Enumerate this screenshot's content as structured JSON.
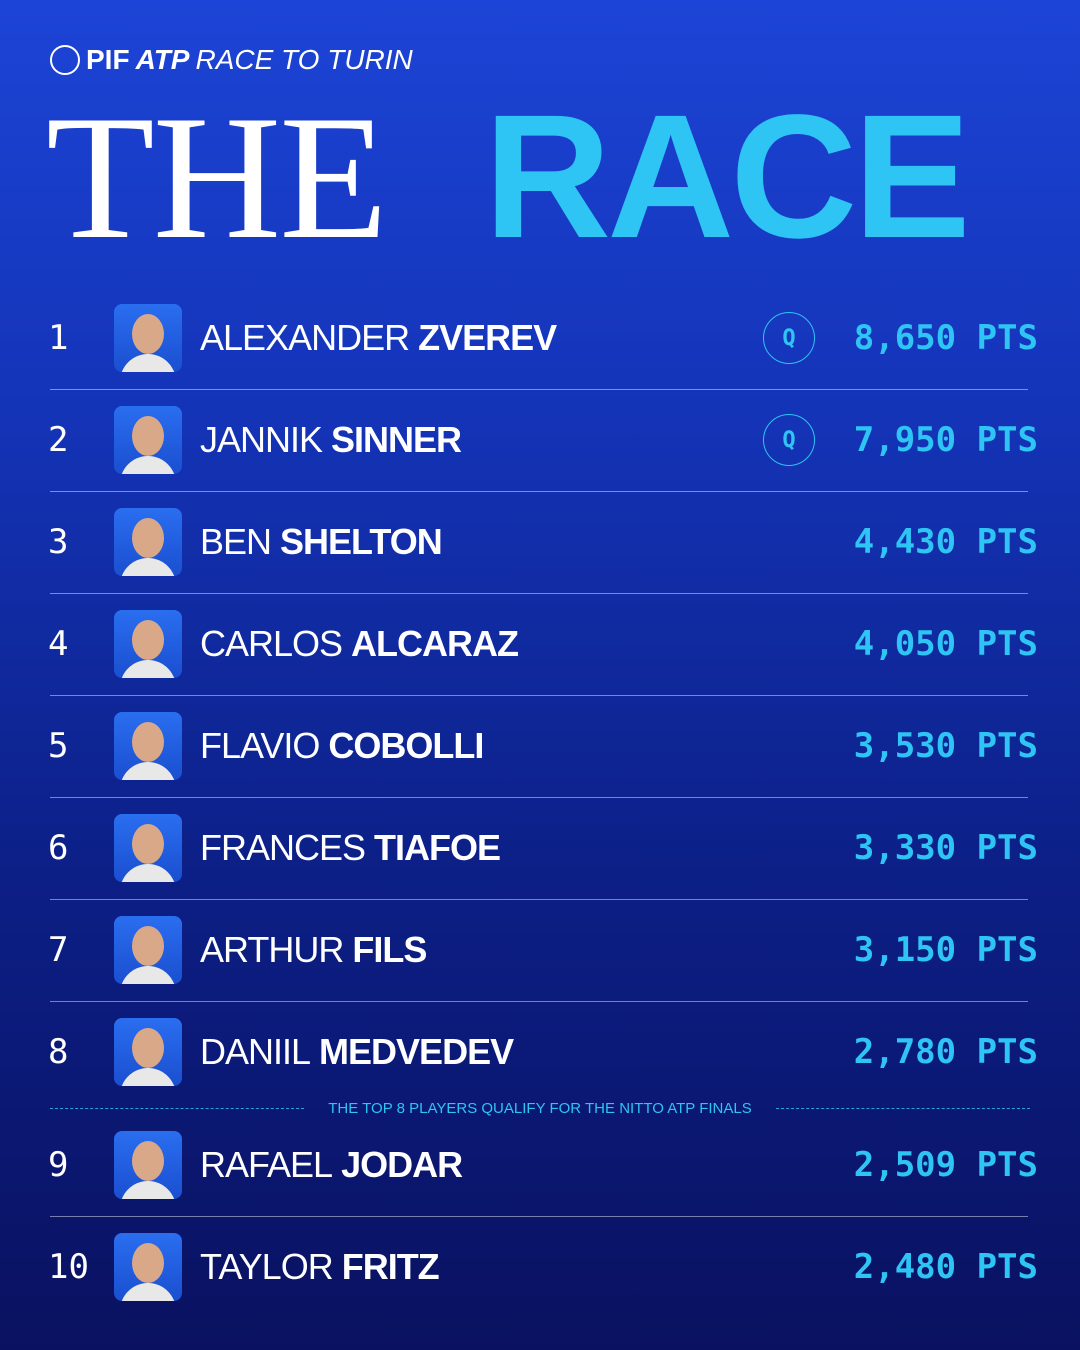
{
  "header": {
    "logo": {
      "pif": "PIF",
      "atp": "ATP",
      "subtitle": "RACE TO TURIN"
    },
    "title_the": "THE",
    "title_race": "RACE"
  },
  "table": {
    "rows": [
      {
        "rank": 1,
        "first": "ALEXANDER",
        "last": "ZVEREV",
        "qualified": "Q",
        "points": "8,650 PTS"
      },
      {
        "rank": 2,
        "first": "JANNIK",
        "last": "SINNER",
        "qualified": "Q",
        "points": "7,950 PTS"
      },
      {
        "rank": 3,
        "first": "BEN",
        "last": "SHELTON",
        "points": "4,430 PTS"
      },
      {
        "rank": 4,
        "first": "CARLOS",
        "last": "ALCARAZ",
        "points": "4,050 PTS"
      },
      {
        "rank": 5,
        "first": "FLAVIO",
        "last": "COBOLLI",
        "points": "3,530 PTS"
      },
      {
        "rank": 6,
        "first": "FRANCES",
        "last": "TIAFOE",
        "points": "3,330 PTS"
      },
      {
        "rank": 7,
        "first": "ARTHUR",
        "last": "FILS",
        "points": "3,150 PTS"
      },
      {
        "rank": 8,
        "first": "DANIIL",
        "last": "MEDVEDEV",
        "points": "2,780 PTS"
      },
      {
        "rank": 9,
        "first": "RAFAEL",
        "last": "JODAR",
        "points": "2,509 PTS"
      },
      {
        "rank": 10,
        "first": "TAYLOR",
        "last": "FRITZ",
        "points": "2,480 PTS"
      }
    ],
    "qualify_note": "THE TOP 8 PLAYERS QUALIFY FOR THE NITTO ATP FINALS"
  }
}
